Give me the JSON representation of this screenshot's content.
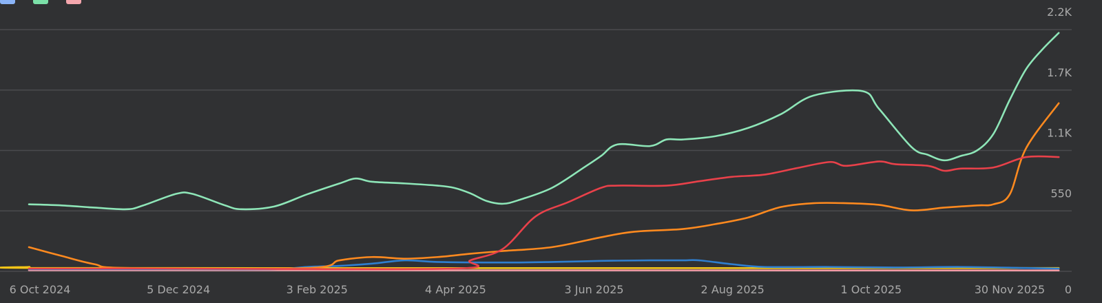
{
  "chart_data": {
    "type": "line",
    "title": "",
    "xlabel": "",
    "ylabel": "",
    "x_start": "2024-10-06",
    "x_end": "2025-11-30",
    "x_ticks": [
      "6 Oct 2024",
      "5 Dec 2024",
      "3 Feb 2025",
      "4 Apr 2025",
      "3 Jun 2025",
      "2 Aug 2025",
      "1 Oct 2025",
      "30 Nov 2025"
    ],
    "y_ticks": [
      {
        "value": 0,
        "label": "0"
      },
      {
        "value": 550,
        "label": "550"
      },
      {
        "value": 1100,
        "label": "1.1K"
      },
      {
        "value": 1650,
        "label": "1.7K"
      },
      {
        "value": 2200,
        "label": "2.2K"
      }
    ],
    "ylim": [
      0,
      2200
    ],
    "grid": true,
    "legend_position": "top-left",
    "series": [
      {
        "name": "",
        "color": "#8ee6b8",
        "points": [
          [
            "2024-10-06",
            610
          ],
          [
            "2024-10-20",
            600
          ],
          [
            "2024-11-03",
            580
          ],
          [
            "2024-11-17",
            565
          ],
          [
            "2024-11-24",
            600
          ],
          [
            "2024-12-08",
            705
          ],
          [
            "2024-12-15",
            705
          ],
          [
            "2024-12-29",
            600
          ],
          [
            "2025-01-05",
            565
          ],
          [
            "2025-01-19",
            590
          ],
          [
            "2025-02-02",
            700
          ],
          [
            "2025-02-16",
            800
          ],
          [
            "2025-02-23",
            845
          ],
          [
            "2025-03-02",
            815
          ],
          [
            "2025-03-16",
            800
          ],
          [
            "2025-03-30",
            780
          ],
          [
            "2025-04-06",
            760
          ],
          [
            "2025-04-13",
            710
          ],
          [
            "2025-04-20",
            640
          ],
          [
            "2025-04-27",
            615
          ],
          [
            "2025-05-04",
            650
          ],
          [
            "2025-05-18",
            760
          ],
          [
            "2025-06-01",
            950
          ],
          [
            "2025-06-08",
            1050
          ],
          [
            "2025-06-15",
            1155
          ],
          [
            "2025-06-29",
            1140
          ],
          [
            "2025-07-06",
            1200
          ],
          [
            "2025-07-13",
            1200
          ],
          [
            "2025-07-27",
            1230
          ],
          [
            "2025-08-10",
            1305
          ],
          [
            "2025-08-24",
            1430
          ],
          [
            "2025-09-07",
            1600
          ],
          [
            "2025-09-28",
            1640
          ],
          [
            "2025-10-05",
            1480
          ],
          [
            "2025-10-19",
            1130
          ],
          [
            "2025-10-26",
            1060
          ],
          [
            "2025-11-02",
            1010
          ],
          [
            "2025-11-09",
            1050
          ],
          [
            "2025-11-16",
            1100
          ],
          [
            "2025-11-23",
            1250
          ],
          [
            "2025-11-30",
            1560
          ],
          [
            "2025-12-07",
            1840
          ],
          [
            "2025-12-14",
            2020
          ],
          [
            "2025-12-21",
            2170
          ]
        ]
      },
      {
        "name": "",
        "color": "#e9414a",
        "points": [
          [
            "2024-10-06",
            25
          ],
          [
            "2024-12-08",
            25
          ],
          [
            "2025-04-06",
            25
          ],
          [
            "2025-04-13",
            100
          ],
          [
            "2025-04-27",
            205
          ],
          [
            "2025-05-11",
            500
          ],
          [
            "2025-05-25",
            630
          ],
          [
            "2025-06-08",
            760
          ],
          [
            "2025-06-15",
            780
          ],
          [
            "2025-07-06",
            780
          ],
          [
            "2025-07-20",
            820
          ],
          [
            "2025-08-03",
            860
          ],
          [
            "2025-08-17",
            880
          ],
          [
            "2025-08-31",
            940
          ],
          [
            "2025-09-14",
            995
          ],
          [
            "2025-09-21",
            960
          ],
          [
            "2025-10-05",
            1000
          ],
          [
            "2025-10-12",
            975
          ],
          [
            "2025-10-26",
            960
          ],
          [
            "2025-11-02",
            915
          ],
          [
            "2025-11-09",
            935
          ],
          [
            "2025-11-23",
            945
          ],
          [
            "2025-12-07",
            1040
          ],
          [
            "2025-12-21",
            1040
          ]
        ]
      },
      {
        "name": "",
        "color": "#ff8a1f",
        "points": [
          [
            "2024-10-06",
            220
          ],
          [
            "2024-10-20",
            140
          ],
          [
            "2024-11-03",
            65
          ],
          [
            "2024-11-17",
            30
          ],
          [
            "2025-02-02",
            30
          ],
          [
            "2025-02-16",
            100
          ],
          [
            "2025-03-02",
            130
          ],
          [
            "2025-03-16",
            115
          ],
          [
            "2025-03-30",
            130
          ],
          [
            "2025-04-13",
            160
          ],
          [
            "2025-04-27",
            185
          ],
          [
            "2025-05-18",
            220
          ],
          [
            "2025-06-08",
            310
          ],
          [
            "2025-06-22",
            360
          ],
          [
            "2025-07-13",
            385
          ],
          [
            "2025-07-27",
            430
          ],
          [
            "2025-08-10",
            490
          ],
          [
            "2025-08-24",
            585
          ],
          [
            "2025-09-07",
            620
          ],
          [
            "2025-09-21",
            620
          ],
          [
            "2025-10-05",
            605
          ],
          [
            "2025-10-19",
            555
          ],
          [
            "2025-11-02",
            580
          ],
          [
            "2025-11-16",
            600
          ],
          [
            "2025-11-23",
            610
          ],
          [
            "2025-11-30",
            700
          ],
          [
            "2025-12-07",
            1120
          ],
          [
            "2025-12-21",
            1530
          ]
        ]
      },
      {
        "name": "",
        "color": "#2f7fd0",
        "points": [
          [
            "2024-10-06",
            20
          ],
          [
            "2024-12-08",
            20
          ],
          [
            "2025-01-19",
            20
          ],
          [
            "2025-02-02",
            40
          ],
          [
            "2025-02-16",
            50
          ],
          [
            "2025-03-02",
            70
          ],
          [
            "2025-03-16",
            100
          ],
          [
            "2025-03-30",
            85
          ],
          [
            "2025-04-27",
            80
          ],
          [
            "2025-05-18",
            85
          ],
          [
            "2025-06-08",
            95
          ],
          [
            "2025-06-29",
            100
          ],
          [
            "2025-07-13",
            100
          ],
          [
            "2025-07-20",
            100
          ],
          [
            "2025-08-03",
            65
          ],
          [
            "2025-08-17",
            40
          ],
          [
            "2025-09-14",
            40
          ],
          [
            "2025-10-12",
            35
          ],
          [
            "2025-11-09",
            40
          ],
          [
            "2025-12-07",
            30
          ],
          [
            "2025-12-21",
            25
          ]
        ]
      },
      {
        "name": "",
        "color": "#f29aa3",
        "points": [
          [
            "2024-10-06",
            10
          ],
          [
            "2025-12-21",
            8
          ]
        ]
      },
      {
        "name": "",
        "color": "#f5c518",
        "points": [
          [
            "2024-10-06",
            40
          ],
          [
            "2024-11-03",
            30
          ],
          [
            "2025-12-21",
            30
          ]
        ]
      }
    ],
    "legend": [
      {
        "label": "",
        "color": "#8ab4f8"
      },
      {
        "label": "",
        "color": "#7be0a8"
      },
      {
        "label": "",
        "color": "#f4a6ad"
      }
    ]
  }
}
